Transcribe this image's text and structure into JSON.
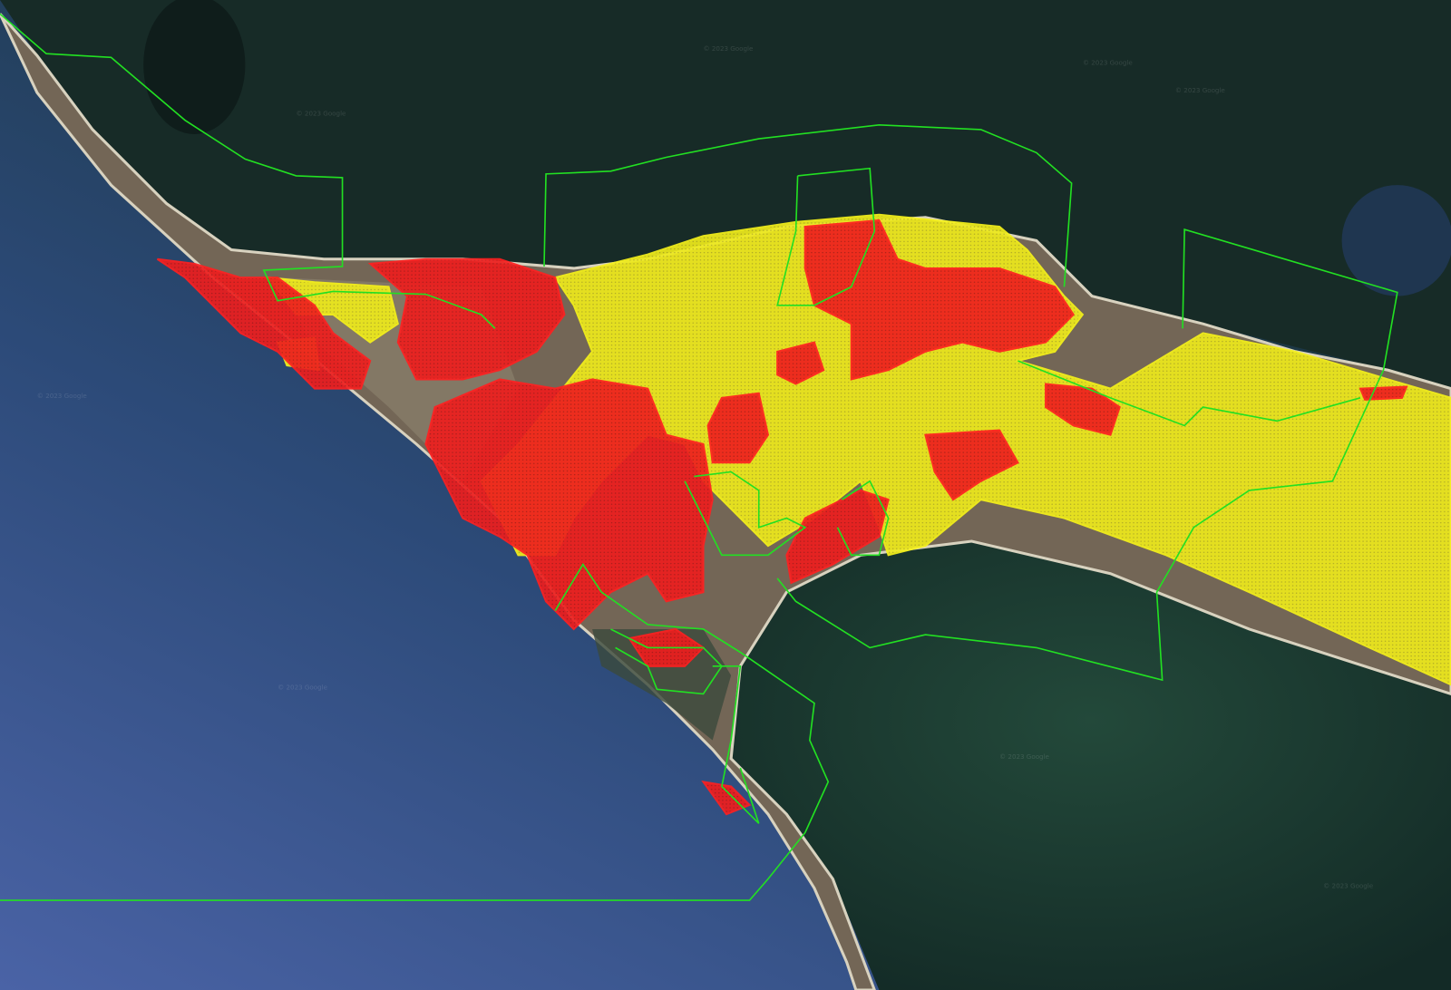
{
  "map": {
    "imagery_attribution": "© 2023 Google",
    "colors": {
      "ocean_open": "#3f5c9c",
      "ocean_dark": "#14302c",
      "lagoon_water": "#17332b",
      "bay_water": "#1d3f33",
      "land": "#6f6457",
      "yellow_zone": "#f2ee1a",
      "red_zone": "#f01d1d",
      "boundary_line": "#22e022"
    }
  }
}
